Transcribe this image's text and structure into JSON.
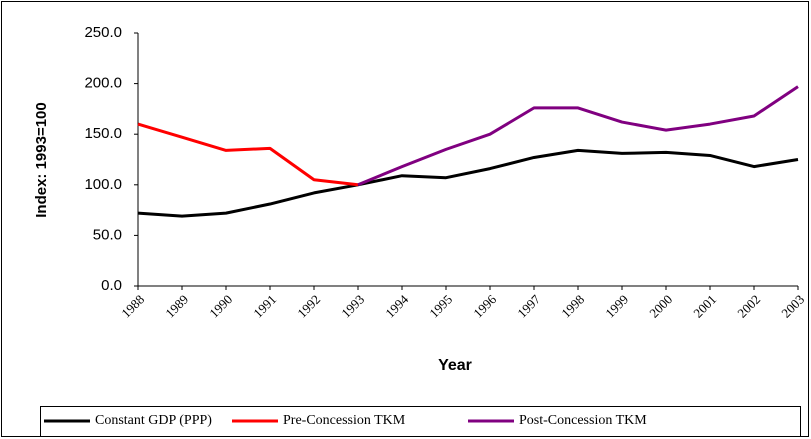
{
  "chart_data": {
    "type": "line",
    "x_label": "Year",
    "y_label": "Index: 1993=100",
    "categories": [
      "1988",
      "1989",
      "1990",
      "1991",
      "1992",
      "1993",
      "1994",
      "1995",
      "1996",
      "1997",
      "1998",
      "1999",
      "2000",
      "2001",
      "2002",
      "2003"
    ],
    "series": [
      {
        "name": "Constant GDP (PPP)",
        "color": "#000000",
        "values": [
          72,
          69,
          72,
          81,
          92,
          100,
          109,
          107,
          116,
          127,
          134,
          131,
          132,
          129,
          118,
          125
        ]
      },
      {
        "name": "Pre-Concession TKM",
        "color": "#ff0000",
        "values": [
          160,
          147,
          134,
          136,
          105,
          100,
          null,
          null,
          null,
          null,
          null,
          null,
          null,
          null,
          null,
          null
        ]
      },
      {
        "name": "Post-Concession TKM",
        "color": "#800080",
        "values": [
          null,
          null,
          null,
          null,
          null,
          100,
          118,
          135,
          150,
          176,
          176,
          162,
          154,
          160,
          168,
          197
        ]
      }
    ],
    "ylim": [
      0,
      250
    ],
    "yticks": [
      {
        "value": 0,
        "label": "0.0"
      },
      {
        "value": 50,
        "label": "50.0"
      },
      {
        "value": 100,
        "label": "100.0"
      },
      {
        "value": 150,
        "label": "150.0"
      },
      {
        "value": 200,
        "label": "200.0"
      },
      {
        "value": 250,
        "label": "250.0"
      }
    ],
    "legend": "bottom"
  }
}
